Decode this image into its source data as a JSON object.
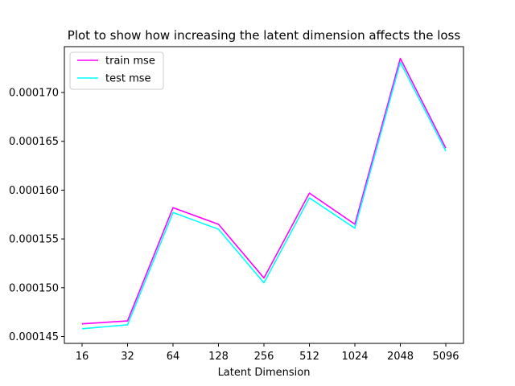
{
  "chart_data": {
    "type": "line",
    "title": "Plot to show how increasing the latent dimension affects the loss",
    "xlabel": "Latent Dimension",
    "ylabel": "",
    "categories": [
      "16",
      "32",
      "64",
      "128",
      "256",
      "512",
      "1024",
      "2048",
      "5096"
    ],
    "yticks": [
      "0.000145",
      "0.000150",
      "0.000155",
      "0.000160",
      "0.000165",
      "0.000170"
    ],
    "ytick_values": [
      0.000145,
      0.00015,
      0.000155,
      0.00016,
      0.000165,
      0.00017
    ],
    "ylim": [
      0.0001443,
      0.0001747
    ],
    "grid": false,
    "legend_position": "top-left",
    "series": [
      {
        "name": "train mse",
        "color": "#ff00ff",
        "values": [
          0.0001463,
          0.0001466,
          0.0001582,
          0.0001565,
          0.000151,
          0.0001597,
          0.0001565,
          0.0001735,
          0.0001643
        ]
      },
      {
        "name": "test mse",
        "color": "#00ffff",
        "values": [
          0.0001458,
          0.0001462,
          0.0001577,
          0.000156,
          0.0001505,
          0.0001592,
          0.0001561,
          0.0001731,
          0.000164
        ]
      }
    ]
  }
}
